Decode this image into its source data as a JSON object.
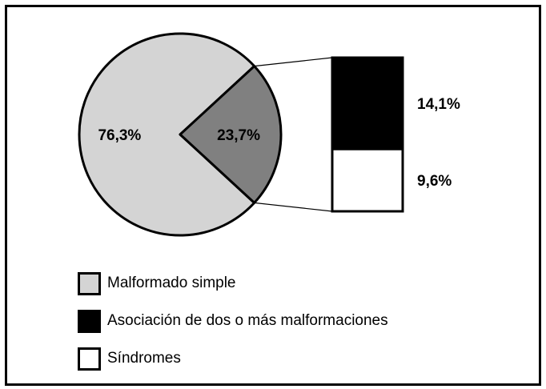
{
  "chart_data": {
    "type": "pie",
    "slices": [
      {
        "label": "Malformado simple",
        "value": 76.3,
        "display": "76,3%",
        "color": "#d4d4d4",
        "text_color": "#000000"
      },
      {
        "label": "Asociación de dos o más malformaciones + Síndromes",
        "value": 23.7,
        "display": "23,7%",
        "color": "#808080",
        "text_color": "#ffffff"
      }
    ],
    "breakdown": {
      "parent_slice": 1,
      "segments": [
        {
          "label": "Asociación de dos o más malformaciones",
          "value": 14.1,
          "display": "14,1%",
          "color": "#000000"
        },
        {
          "label": "Síndromes",
          "value": 9.6,
          "display": "9,6%",
          "color": "#ffffff"
        }
      ]
    },
    "legend": [
      {
        "label": "Malformado simple",
        "color": "#d4d4d4"
      },
      {
        "label": "Asociación de dos o más malformaciones",
        "color": "#000000"
      },
      {
        "label": "Síndromes",
        "color": "#ffffff"
      }
    ],
    "legend_position": "bottom-left"
  }
}
